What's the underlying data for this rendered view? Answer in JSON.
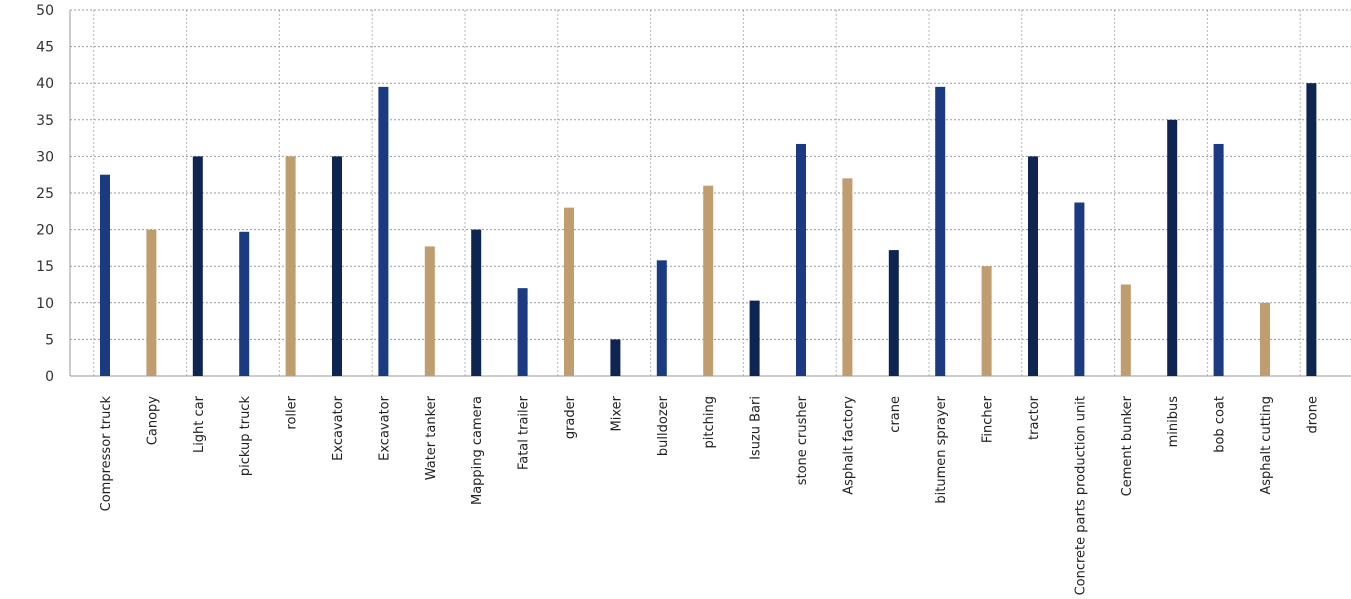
{
  "chart_data": {
    "type": "bar",
    "title": "",
    "xlabel": "",
    "ylabel": "",
    "ylim": [
      0,
      50
    ],
    "yticks": [
      0,
      5,
      10,
      15,
      20,
      25,
      30,
      35,
      40,
      45,
      50
    ],
    "grid": "dashed horizontal and vertical",
    "legend": "none",
    "categories": [
      "Compressor truck",
      "Canopy",
      "Light car",
      "pickup truck",
      "roller",
      "Excavator",
      "Excavator",
      "Water tanker",
      "Mapping camera",
      "Fatal trailer",
      "grader",
      "Mixer",
      "bulldozer",
      "pitching",
      "Isuzu Bari",
      "stone crusher",
      "Asphalt factory",
      "crane",
      "bitumen sprayer",
      "Fincher",
      "tractor",
      "Concrete parts production unit",
      "Cement bunker",
      "minibus",
      "bob coat",
      "Asphalt cutting",
      "drone"
    ],
    "values": [
      27.5,
      20,
      30,
      19.7,
      30,
      30,
      39.5,
      17.7,
      20,
      12,
      23,
      5,
      15.8,
      26,
      10.3,
      31.7,
      27,
      17.2,
      39.5,
      15,
      30,
      23.7,
      12.5,
      35,
      31.7,
      10,
      40
    ],
    "bar_colors": [
      "#1a3a82",
      "#c09d6e",
      "#0d2550",
      "#1a3a82",
      "#c09d6e",
      "#0d2550",
      "#1a3a82",
      "#c09d6e",
      "#0d2550",
      "#1a3a82",
      "#c09d6e",
      "#0d2550",
      "#1a3a82",
      "#c09d6e",
      "#0d2550",
      "#1a3a82",
      "#c09d6e",
      "#0d2550",
      "#1a3a82",
      "#c09d6e",
      "#0d2550",
      "#1a3a82",
      "#c09d6e",
      "#0d2550",
      "#1a3a82",
      "#c09d6e",
      "#0d2550"
    ]
  }
}
